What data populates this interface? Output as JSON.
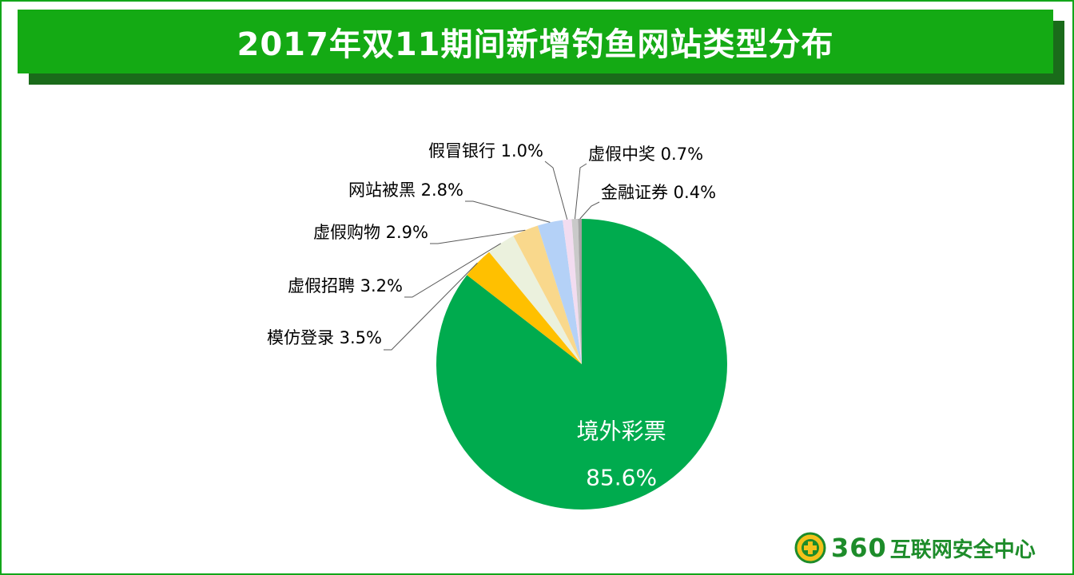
{
  "title": "2017年双11期间新增钓鱼网站类型分布",
  "logo": {
    "number": "360",
    "text": "互联网安全中心"
  },
  "colors": {
    "title_bar": "#14aa14",
    "frame": "#12a61a"
  },
  "chart_data": {
    "type": "pie",
    "title": "2017年双11期间新增钓鱼网站类型分布",
    "slices": [
      {
        "label": "境外彩票",
        "value": 85.6,
        "display": "85.6%",
        "color": "#00ab4e"
      },
      {
        "label": "模仿登录",
        "value": 3.5,
        "display": "3.5%",
        "color": "#ffc000"
      },
      {
        "label": "虚假招聘",
        "value": 3.2,
        "display": "3.2%",
        "color": "#ebf1dd"
      },
      {
        "label": "虚假购物",
        "value": 2.9,
        "display": "2.9%",
        "color": "#f9d88c"
      },
      {
        "label": "网站被黑",
        "value": 2.8,
        "display": "2.8%",
        "color": "#b4d1f7"
      },
      {
        "label": "假冒银行",
        "value": 1.0,
        "display": "1.0%",
        "color": "#f2dcf0"
      },
      {
        "label": "虚假中奖",
        "value": 0.7,
        "display": "0.7%",
        "color": "#c9c9c9"
      },
      {
        "label": "金融证券",
        "value": 0.4,
        "display": "0.4%",
        "color": "#a3a3a3"
      }
    ]
  }
}
